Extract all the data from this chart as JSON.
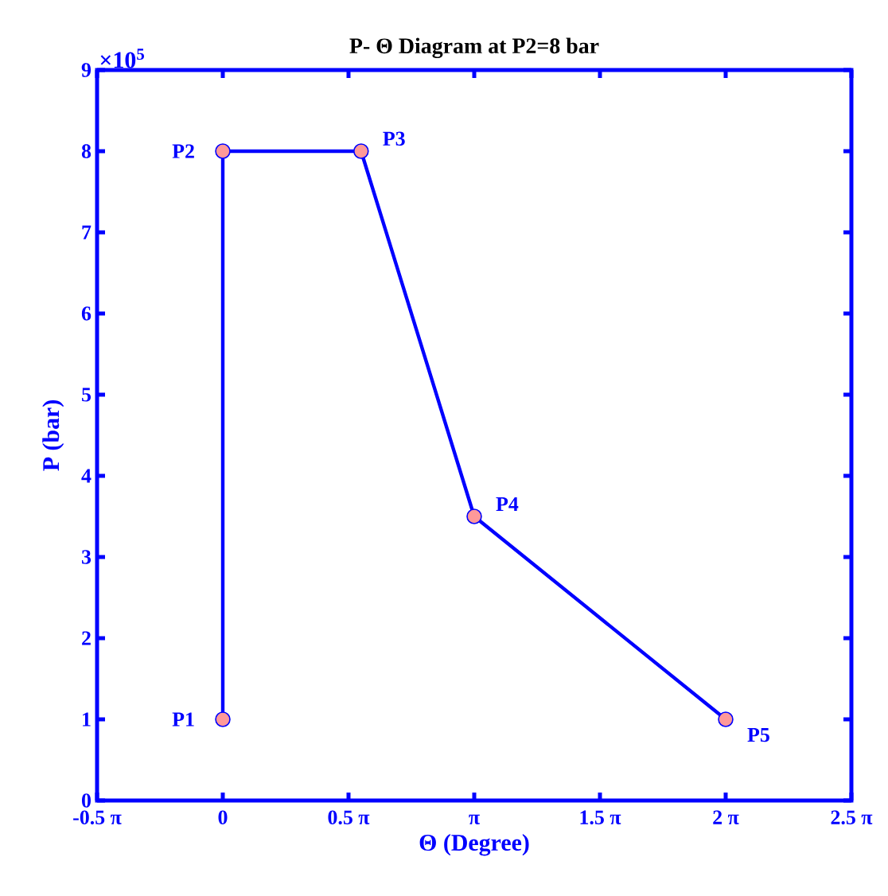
{
  "chart_data": {
    "type": "line",
    "title": "P- Θ Diagram at P2=8 bar",
    "xlabel": "Θ (Degree)",
    "ylabel": "P (bar)",
    "x": [
      0,
      0,
      1.728,
      3.1416,
      6.2832
    ],
    "series": [
      {
        "color": "#0000ff",
        "values": [
          1,
          8,
          8,
          3.5,
          1
        ]
      }
    ],
    "xlim": [
      -1.5708,
      7.854
    ],
    "xticks": [
      {
        "value": -1.5708,
        "label": "-0.5  π"
      },
      0,
      {
        "value": 1.5708,
        "label": "0.5 π"
      },
      {
        "value": 3.1416,
        "label": "π"
      },
      {
        "value": 4.7124,
        "label": "1.5 π"
      },
      {
        "value": 6.2832,
        "label": "2 π"
      },
      {
        "value": 7.854,
        "label": "2.5 π"
      }
    ],
    "ylim": [
      0,
      9
    ],
    "yticks": [
      0,
      1,
      2,
      3,
      4,
      5,
      6,
      7,
      8,
      9
    ],
    "marker": "circle",
    "line_style": "solid",
    "grid": false,
    "annotations": [
      "×10$^{5}$",
      {
        "text": "P1",
        "x": 0,
        "y": 1
      },
      {
        "text": "P2",
        "x": 0,
        "y": 8
      },
      {
        "text": "P3",
        "x": 1.728,
        "y": 8
      },
      {
        "text": "P4",
        "x": 3.1416,
        "y": 3.5
      },
      {
        "text": "P5",
        "x": 6.2832,
        "y": 1
      }
    ]
  }
}
